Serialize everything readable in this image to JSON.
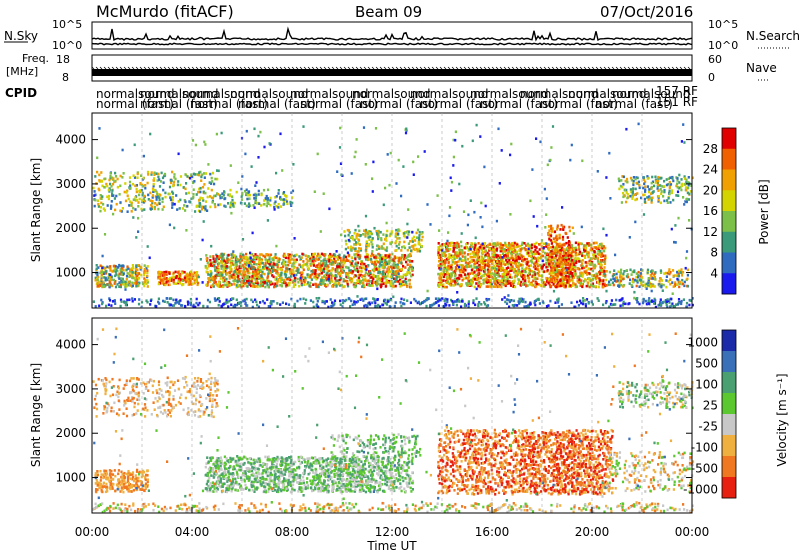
{
  "header": {
    "site": "McMurdo (fitACF)",
    "beam": "Beam 09",
    "date": "07/Oct/2016"
  },
  "labels": {
    "nsky": "N.Sky",
    "nsearch": "N.Search",
    "freq_line1": "Freq.",
    "freq_line2": "[MHz]",
    "nave": "Nave",
    "cpid": "CPID",
    "cpid_row1": "normalsound",
    "cpid_row2": "normal (fast)",
    "cpid_end1": "157 RF",
    "cpid_end2": "151 RF"
  },
  "chart_data": [
    {
      "type": "line",
      "panel": "noise",
      "ylabel_left": "N.Sky",
      "ylabel_right": "N.Search",
      "yticks_left": [
        "10^5",
        "10^0"
      ],
      "yticks_right": [
        "10^5",
        "10^0"
      ]
    },
    {
      "type": "line",
      "panel": "frequency",
      "ylabel_left": "Freq. [MHz]",
      "ylabel_right": "Nave",
      "yticks_left": [
        "18",
        "8"
      ],
      "yticks_right": [
        "60",
        "0"
      ]
    },
    {
      "type": "heatmap",
      "panel": "power",
      "ylabel": "Slant Range [km]",
      "ylim": [
        200,
        4600
      ],
      "yticks": [
        1000,
        2000,
        3000,
        4000
      ],
      "colorbar_label": "Power [dB]",
      "colorbar_ticks": [
        4,
        8,
        12,
        16,
        20,
        24,
        28
      ],
      "colorbar_range": [
        0,
        32
      ],
      "colors": [
        "#1a1aee",
        "#2f6cc0",
        "#3a9a7a",
        "#7cc04a",
        "#d4d400",
        "#f0a000",
        "#f06000",
        "#e00000"
      ]
    },
    {
      "type": "heatmap",
      "panel": "velocity",
      "ylabel": "Slant Range [km]",
      "ylim": [
        200,
        4600
      ],
      "yticks": [
        1000,
        2000,
        3000,
        4000
      ],
      "xlabel": "Time UT",
      "xticks": [
        "00:00",
        "04:00",
        "08:00",
        "12:00",
        "16:00",
        "20:00",
        "00:00"
      ],
      "colorbar_label": "Velocity [m s⁻¹]",
      "colorbar_ticks": [
        "1000",
        "500",
        "100",
        "25",
        "-25",
        "-100",
        "-500",
        "-1000"
      ],
      "colors": [
        "#1a2aa8",
        "#3a70b8",
        "#4aa070",
        "#5cc830",
        "#c8c8c8",
        "#f0b040",
        "#f07820",
        "#e82010"
      ]
    }
  ]
}
